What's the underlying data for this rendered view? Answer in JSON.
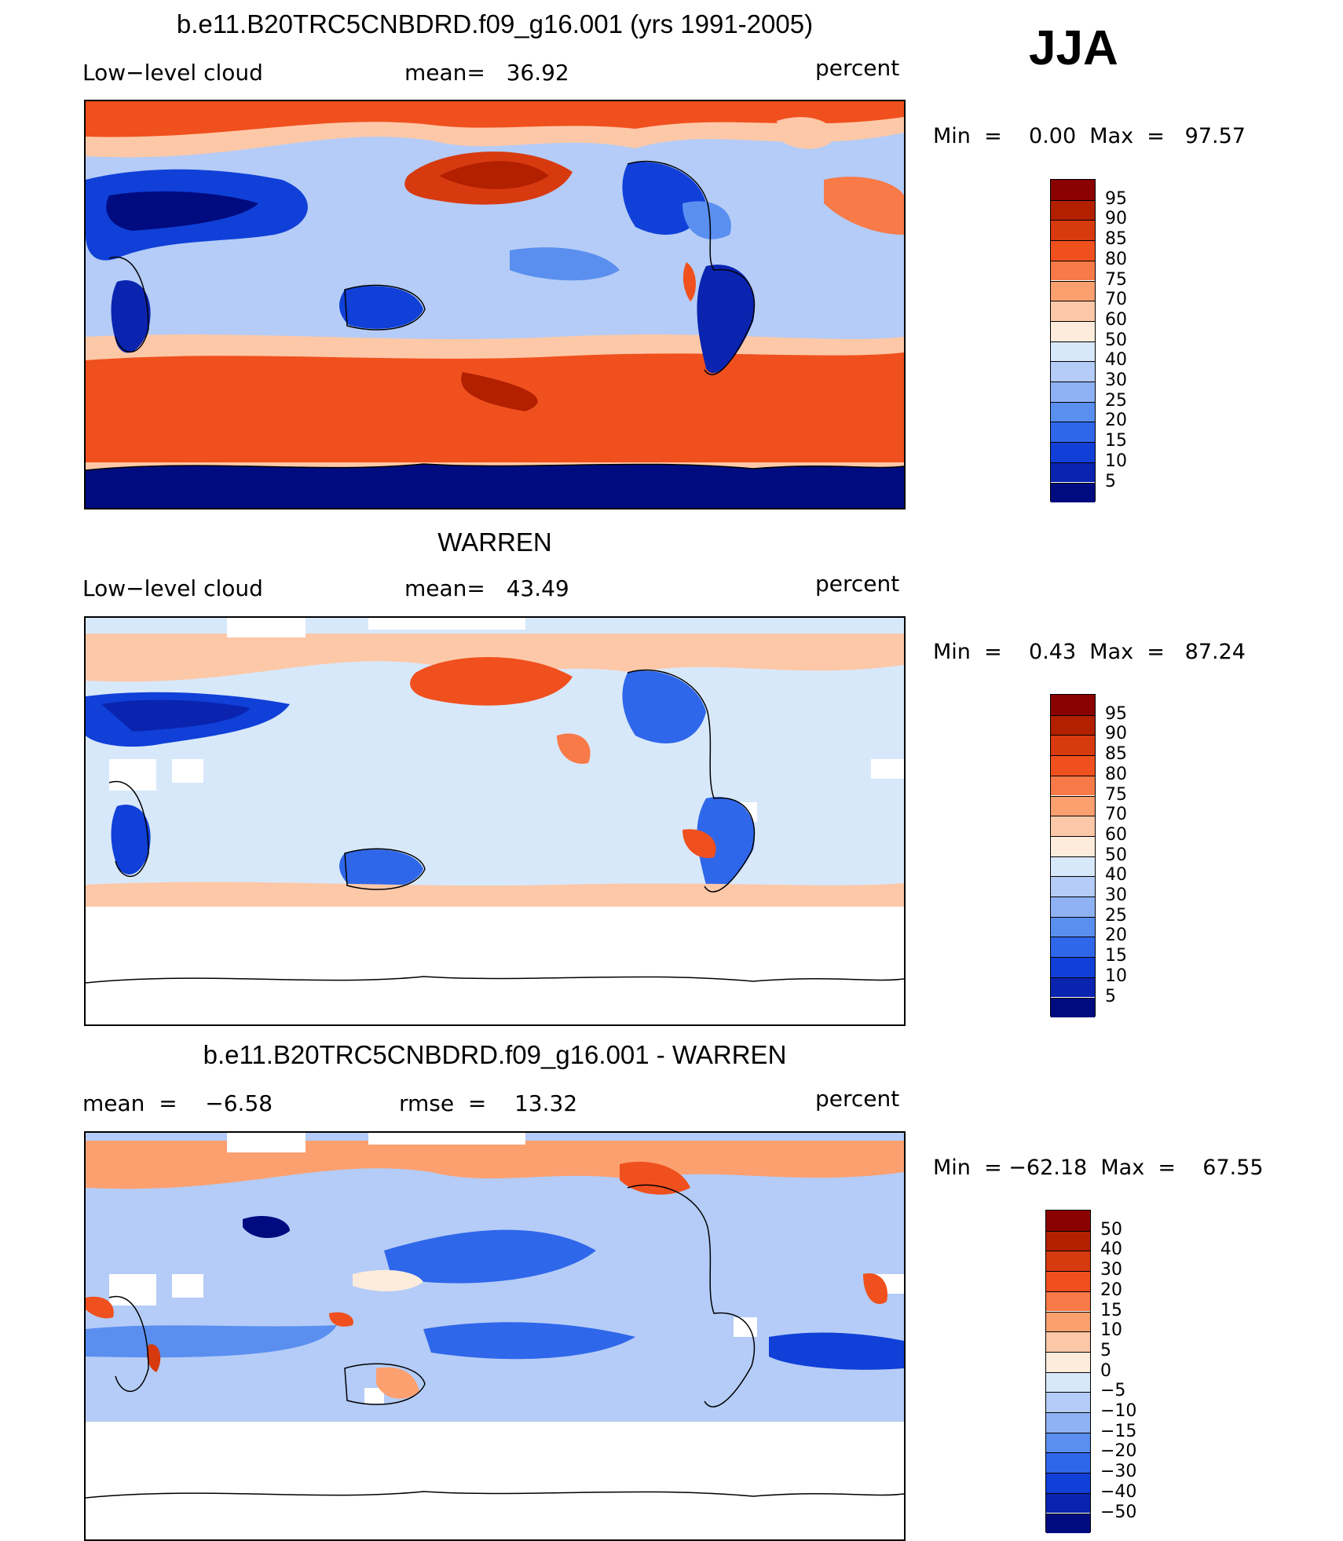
{
  "season": "JJA",
  "panels": [
    {
      "title": "b.e11.B20TRC5CNBDRD.f09_g16.001 (yrs 1991-2005)",
      "left_text": "Low−level cloud",
      "center_text": "mean=   36.92",
      "units": "percent",
      "minmax": "Min  =    0.00  Max  =   97.57",
      "colorbar": {
        "labels": [
          "95",
          "90",
          "85",
          "80",
          "75",
          "70",
          "60",
          "50",
          "40",
          "30",
          "25",
          "20",
          "15",
          "10",
          "5"
        ],
        "colors": [
          "#8b0000",
          "#b22000",
          "#d83a10",
          "#f0501e",
          "#f87a48",
          "#fca070",
          "#fdc8a8",
          "#fdebdc",
          "#d8e8fb",
          "#b4ccf7",
          "#8fb2f5",
          "#5a8ff0",
          "#2f67ea",
          "#1040d8",
          "#0a24b0",
          "#000b80"
        ]
      }
    },
    {
      "title": "WARREN",
      "left_text": "Low−level cloud",
      "center_text": "mean=   43.49",
      "units": "percent",
      "minmax": "Min  =    0.43  Max  =   87.24",
      "colorbar": {
        "labels": [
          "95",
          "90",
          "85",
          "80",
          "75",
          "70",
          "60",
          "50",
          "40",
          "30",
          "25",
          "20",
          "15",
          "10",
          "5"
        ],
        "colors": [
          "#8b0000",
          "#b22000",
          "#d83a10",
          "#f0501e",
          "#f87a48",
          "#fca070",
          "#fdc8a8",
          "#fdebdc",
          "#d8e8fb",
          "#b4ccf7",
          "#8fb2f5",
          "#5a8ff0",
          "#2f67ea",
          "#1040d8",
          "#0a24b0",
          "#000b80"
        ]
      }
    },
    {
      "title": "b.e11.B20TRC5CNBDRD.f09_g16.001 - WARREN",
      "left_text": "mean  =    −6.58",
      "center_text": "rmse  =    13.32",
      "units": "percent",
      "minmax": "Min  = −62.18  Max  =    67.55",
      "colorbar": {
        "labels": [
          "50",
          "40",
          "30",
          "20",
          "15",
          "10",
          "5",
          "0",
          "−5",
          "−10",
          "−15",
          "−20",
          "−30",
          "−40",
          "−50"
        ],
        "colors": [
          "#8b0000",
          "#b22000",
          "#d83a10",
          "#f0501e",
          "#f87a48",
          "#fca070",
          "#fdc8a8",
          "#fdebdc",
          "#d8e8fb",
          "#b4ccf7",
          "#8fb2f5",
          "#5a8ff0",
          "#2f67ea",
          "#1040d8",
          "#0a24b0",
          "#000b80"
        ]
      }
    }
  ]
}
